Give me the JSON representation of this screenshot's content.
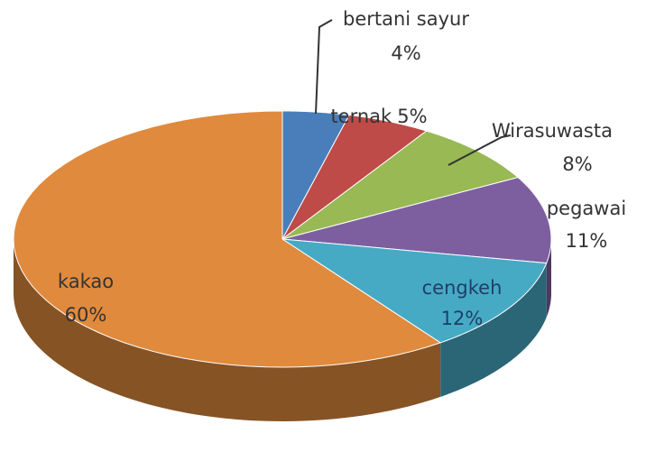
{
  "chart_data": {
    "type": "pie",
    "categories": [
      "bertani sayur",
      "ternak",
      "Wirasuwasta",
      "pegawai",
      "cengkeh",
      "kakao"
    ],
    "values": [
      4,
      5,
      8,
      11,
      12,
      60
    ],
    "value_labels": [
      "4%",
      "5%",
      "8%",
      "11%",
      "12%",
      "60%"
    ],
    "colors": [
      "#4a7ebb",
      "#be4b48",
      "#98b954",
      "#7d5fa0",
      "#46aac5",
      "#e08a3e"
    ]
  }
}
